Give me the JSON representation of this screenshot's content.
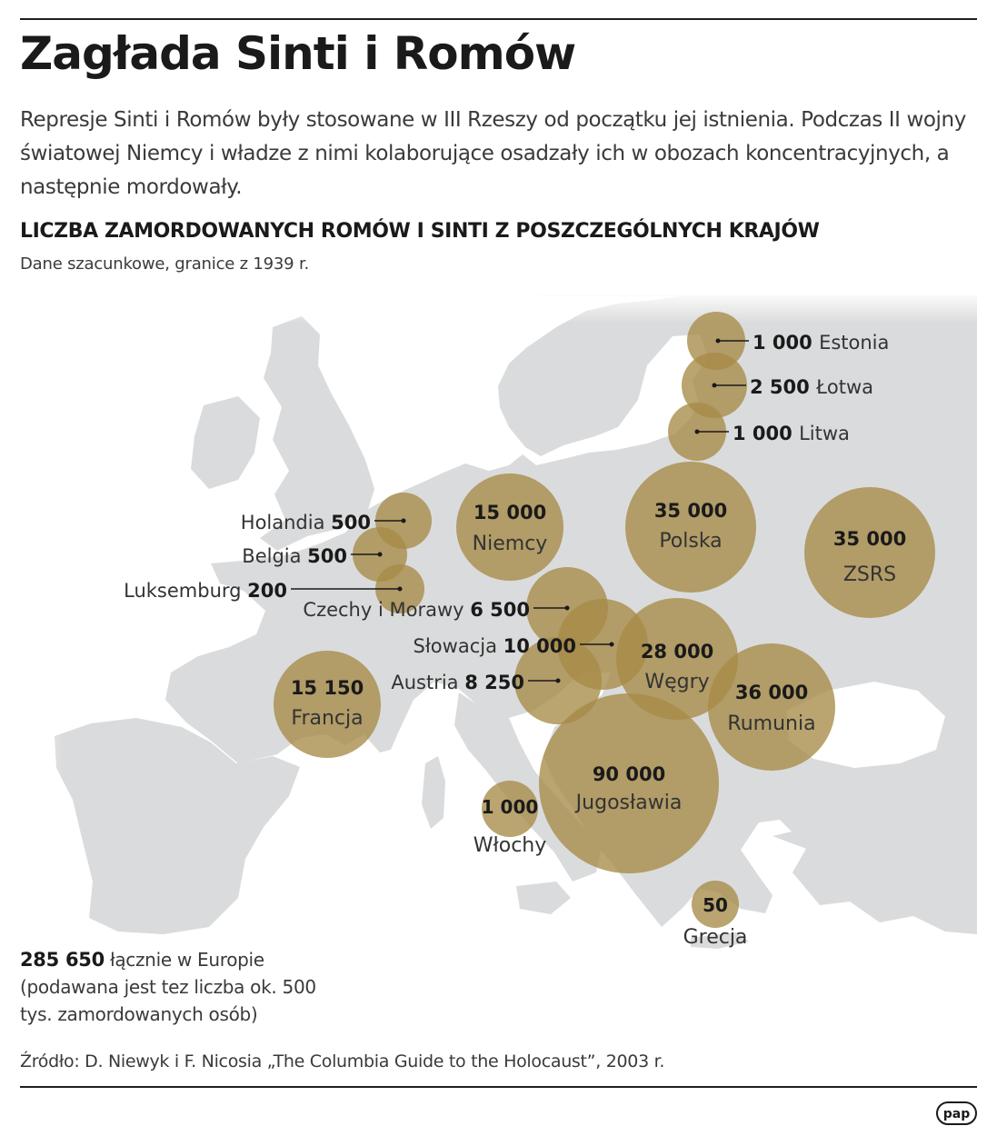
{
  "title": "Zagłada Sinti i Romów",
  "intro": "Represje Sinti i Romów były stosowane w III Rzeszy od początku jej istnienia. Podczas II wojny światowej Niemcy i władze z nimi kolaborujące osadzały ich w obozach koncentracyjnych, a następnie mordowały.",
  "chart_title": "LICZBA ZAMORDOWANYCH ROMÓW I SINTI Z POSZCZEGÓLNYCH KRAJÓW",
  "chart_subtitle": "Dane szacunkowe, granice z 1939 r.",
  "colors": {
    "bubble": "#a68a47",
    "land": "#dadbdc",
    "sea": "#ffffff",
    "text": "#333333"
  },
  "chart_data": {
    "type": "bubble-map",
    "title": "LICZBA ZAMORDOWANYCH ROMÓW I SINTI Z POSZCZEGÓLNYCH KRAJÓW",
    "subtitle": "Dane szacunkowe, granice z 1939 r.",
    "countries": [
      {
        "name": "Estonia",
        "value": 1000,
        "value_label": "1 000"
      },
      {
        "name": "Łotwa",
        "value": 2500,
        "value_label": "2 500"
      },
      {
        "name": "Litwa",
        "value": 1000,
        "value_label": "1 000"
      },
      {
        "name": "Holandia",
        "value": 500,
        "value_label": "500"
      },
      {
        "name": "Belgia",
        "value": 500,
        "value_label": "500"
      },
      {
        "name": "Luksemburg",
        "value": 200,
        "value_label": "200"
      },
      {
        "name": "Niemcy",
        "value": 15000,
        "value_label": "15 000"
      },
      {
        "name": "Polska",
        "value": 35000,
        "value_label": "35 000"
      },
      {
        "name": "ZSRS",
        "value": 35000,
        "value_label": "35 000"
      },
      {
        "name": "Czechy i Morawy",
        "value": 6500,
        "value_label": "6 500"
      },
      {
        "name": "Słowacja",
        "value": 10000,
        "value_label": "10 000"
      },
      {
        "name": "Austria",
        "value": 8250,
        "value_label": "8 250"
      },
      {
        "name": "Węgry",
        "value": 28000,
        "value_label": "28 000"
      },
      {
        "name": "Francja",
        "value": 15150,
        "value_label": "15 150"
      },
      {
        "name": "Rumunia",
        "value": 36000,
        "value_label": "36 000"
      },
      {
        "name": "Jugosławia",
        "value": 90000,
        "value_label": "90 000"
      },
      {
        "name": "Włochy",
        "value": 1000,
        "value_label": "1 000"
      },
      {
        "name": "Grecja",
        "value": 50,
        "value_label": "50"
      }
    ],
    "total_value": "285 650",
    "total_label": "łącznie w Europie",
    "total_note": "(podawana jest tez liczba ok. 500 tys. zamordowanych osób)"
  },
  "source": "Źródło: D. Niewyk i F. Nicosia „The Columbia Guide to the Holocaust”, 2003 r.",
  "logo": {
    "icon": "pap-logo",
    "text": "pap"
  }
}
